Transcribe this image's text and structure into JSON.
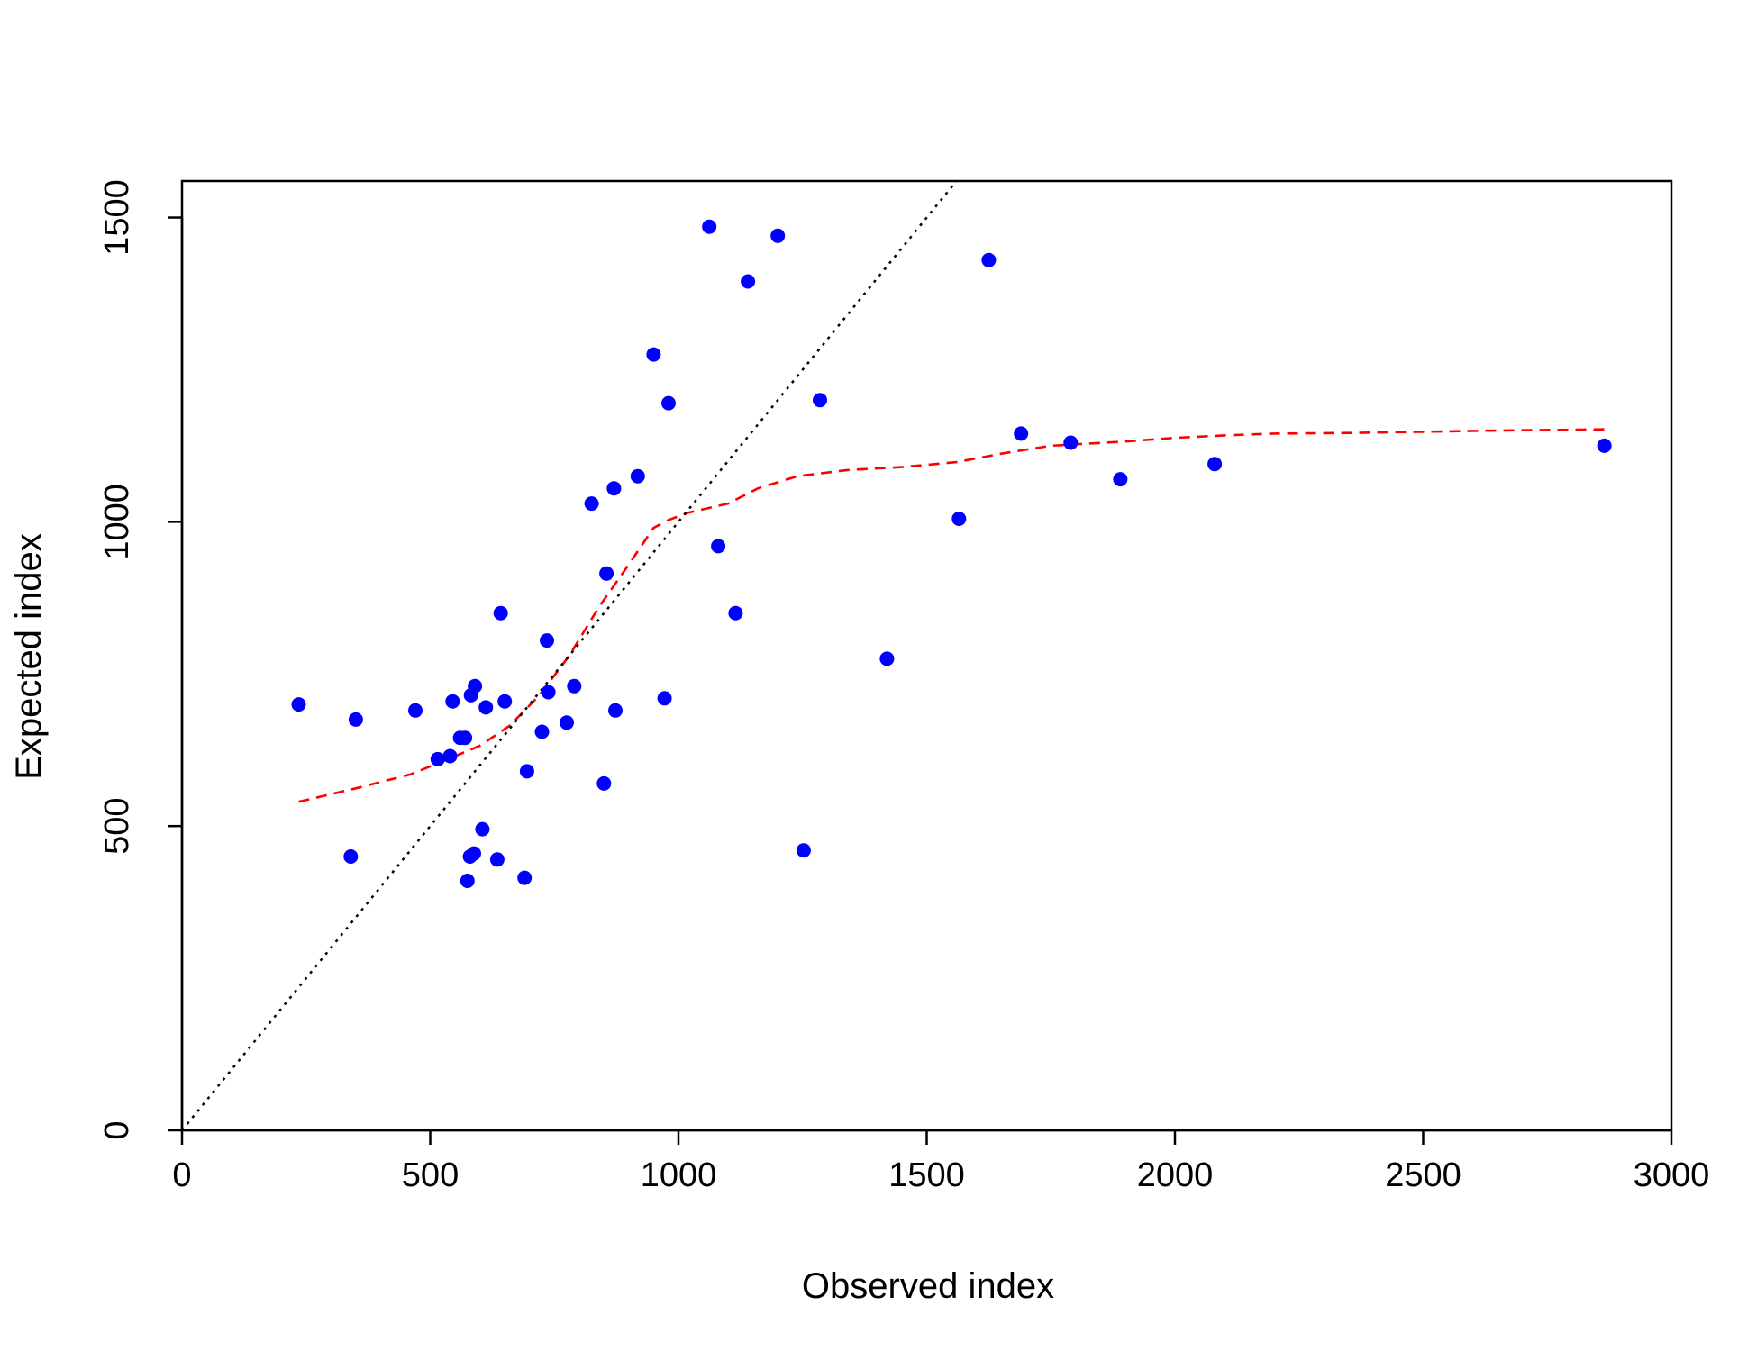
{
  "chart_data": {
    "type": "scatter",
    "title": "",
    "xlabel": "Observed index",
    "ylabel": "Expected index",
    "xlim": [
      0,
      3000
    ],
    "ylim": [
      0,
      1560
    ],
    "x_ticks": [
      0,
      500,
      1000,
      1500,
      2000,
      2500,
      3000
    ],
    "y_ticks": [
      0,
      500,
      1000,
      1500
    ],
    "grid": false,
    "legend": "none",
    "colors": {
      "points": "#0000ff",
      "smooth": "#ff0000",
      "identity": "#000000"
    },
    "series": [
      {
        "type": "scatter",
        "points": [
          [
            235,
            700
          ],
          [
            340,
            450
          ],
          [
            350,
            675
          ],
          [
            470,
            690
          ],
          [
            515,
            610
          ],
          [
            540,
            615
          ],
          [
            545,
            705
          ],
          [
            560,
            645
          ],
          [
            570,
            645
          ],
          [
            575,
            410
          ],
          [
            580,
            450
          ],
          [
            582,
            715
          ],
          [
            588,
            455
          ],
          [
            590,
            730
          ],
          [
            605,
            495
          ],
          [
            612,
            695
          ],
          [
            635,
            445
          ],
          [
            642,
            850
          ],
          [
            650,
            705
          ],
          [
            690,
            415
          ],
          [
            695,
            590
          ],
          [
            725,
            655
          ],
          [
            735,
            805
          ],
          [
            738,
            720
          ],
          [
            775,
            670
          ],
          [
            790,
            730
          ],
          [
            825,
            1030
          ],
          [
            850,
            570
          ],
          [
            855,
            915
          ],
          [
            870,
            1055
          ],
          [
            873,
            690
          ],
          [
            918,
            1075
          ],
          [
            950,
            1275
          ],
          [
            972,
            710
          ],
          [
            980,
            1195
          ],
          [
            1062,
            1485
          ],
          [
            1080,
            960
          ],
          [
            1115,
            850
          ],
          [
            1140,
            1395
          ],
          [
            1200,
            1470
          ],
          [
            1252,
            460
          ],
          [
            1285,
            1200
          ],
          [
            1420,
            775
          ],
          [
            1565,
            1005
          ],
          [
            1625,
            1430
          ],
          [
            1690,
            1145
          ],
          [
            1790,
            1130
          ],
          [
            1890,
            1070
          ],
          [
            2080,
            1095
          ],
          [
            2865,
            1125
          ]
        ]
      },
      {
        "type": "line",
        "style": "dashed",
        "points": [
          [
            235,
            540
          ],
          [
            350,
            562
          ],
          [
            460,
            585
          ],
          [
            530,
            608
          ],
          [
            600,
            632
          ],
          [
            660,
            665
          ],
          [
            720,
            715
          ],
          [
            780,
            780
          ],
          [
            840,
            860
          ],
          [
            900,
            930
          ],
          [
            950,
            990
          ],
          [
            980,
            1003
          ],
          [
            1020,
            1015
          ],
          [
            1100,
            1030
          ],
          [
            1160,
            1055
          ],
          [
            1240,
            1075
          ],
          [
            1340,
            1085
          ],
          [
            1450,
            1090
          ],
          [
            1560,
            1098
          ],
          [
            1650,
            1112
          ],
          [
            1750,
            1125
          ],
          [
            1900,
            1132
          ],
          [
            2000,
            1138
          ],
          [
            2100,
            1142
          ],
          [
            2200,
            1145
          ],
          [
            2350,
            1146
          ],
          [
            2500,
            1148
          ],
          [
            2650,
            1150
          ],
          [
            2865,
            1152
          ]
        ]
      },
      {
        "type": "line",
        "style": "dotted",
        "points": [
          [
            0,
            0
          ],
          [
            1560,
            1560
          ]
        ]
      }
    ]
  }
}
